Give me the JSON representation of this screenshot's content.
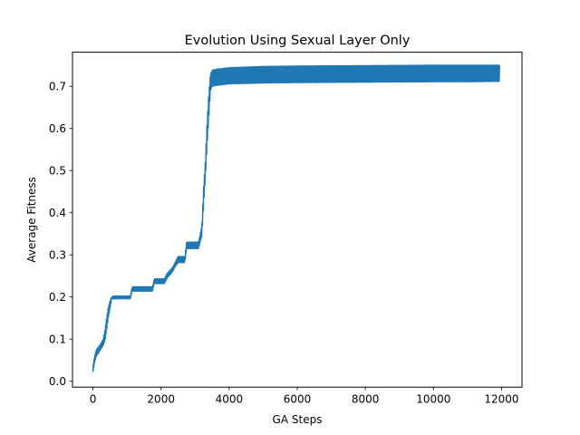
{
  "chart_data": {
    "type": "line",
    "title": "Evolution Using Sexual Layer Only",
    "xlabel": "GA Steps",
    "ylabel": "Average Fitness",
    "xlim": [
      -600,
      12600
    ],
    "ylim": [
      -0.014,
      0.781
    ],
    "xticks": [
      0,
      2000,
      4000,
      6000,
      8000,
      10000,
      12000
    ],
    "yticks": [
      0.0,
      0.1,
      0.2,
      0.3,
      0.4,
      0.5,
      0.6,
      0.7
    ],
    "grid": false,
    "legend": "none",
    "series": [
      {
        "color": "#1f77b4",
        "envelope": {
          "x": [
            0,
            50,
            100,
            200,
            300,
            350,
            400,
            450,
            500,
            550,
            600,
            700,
            800,
            1000,
            1100,
            1150,
            1300,
            1500,
            1700,
            1750,
            1800,
            2000,
            2100,
            2150,
            2200,
            2300,
            2350,
            2400,
            2500,
            2600,
            2700,
            2750,
            2800,
            2900,
            3000,
            3100,
            3200,
            3250,
            3300,
            3350,
            3400,
            3450,
            3500,
            3600,
            3800,
            4000,
            5000,
            6000,
            8000,
            10000,
            11000,
            11950
          ],
          "low": [
            0.022,
            0.045,
            0.06,
            0.072,
            0.085,
            0.095,
            0.12,
            0.15,
            0.172,
            0.195,
            0.196,
            0.196,
            0.196,
            0.196,
            0.196,
            0.214,
            0.214,
            0.214,
            0.214,
            0.214,
            0.232,
            0.232,
            0.232,
            0.24,
            0.248,
            0.256,
            0.262,
            0.27,
            0.282,
            0.282,
            0.282,
            0.315,
            0.315,
            0.315,
            0.315,
            0.315,
            0.345,
            0.42,
            0.48,
            0.56,
            0.62,
            0.69,
            0.7,
            0.702,
            0.704,
            0.706,
            0.708,
            0.709,
            0.71,
            0.711,
            0.711,
            0.712
          ],
          "high": [
            0.035,
            0.06,
            0.075,
            0.085,
            0.1,
            0.12,
            0.15,
            0.175,
            0.19,
            0.2,
            0.202,
            0.202,
            0.202,
            0.202,
            0.202,
            0.224,
            0.224,
            0.224,
            0.224,
            0.224,
            0.243,
            0.243,
            0.243,
            0.252,
            0.258,
            0.266,
            0.272,
            0.28,
            0.296,
            0.296,
            0.296,
            0.33,
            0.33,
            0.33,
            0.33,
            0.33,
            0.37,
            0.46,
            0.52,
            0.61,
            0.68,
            0.728,
            0.738,
            0.74,
            0.742,
            0.744,
            0.747,
            0.748,
            0.749,
            0.75,
            0.75,
            0.75
          ]
        }
      }
    ]
  }
}
